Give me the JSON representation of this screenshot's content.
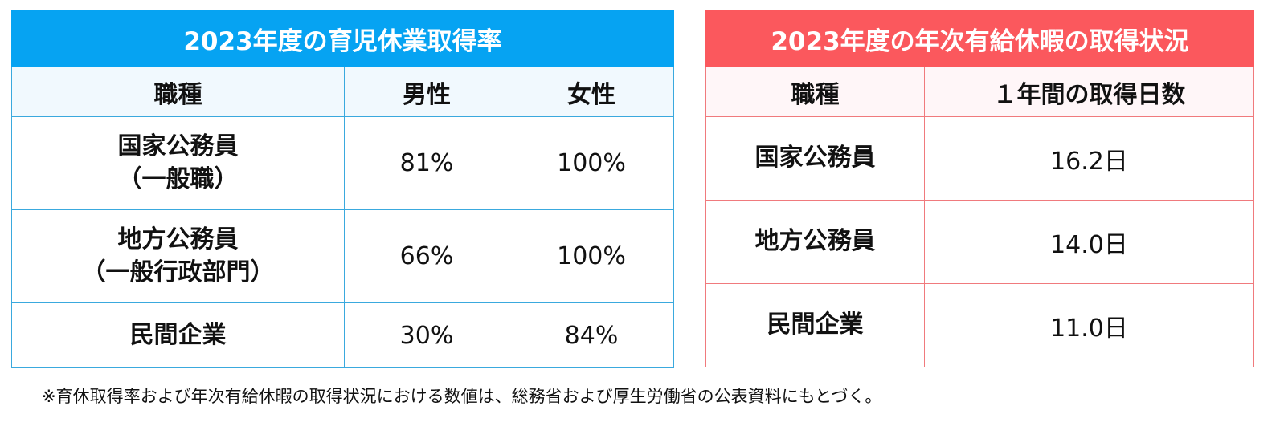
{
  "left_table": {
    "title": "2023年度の育児休業取得率",
    "headers": [
      "職種",
      "男性",
      "女性"
    ],
    "rows": [
      {
        "line1": "国家公務員",
        "line2": "（一般職）",
        "male": "81%",
        "female": "100%"
      },
      {
        "line1": "地方公務員",
        "line2": "（一般行政部門）",
        "male": "66%",
        "female": "100%"
      },
      {
        "line1": "民間企業",
        "line2": "",
        "male": "30%",
        "female": "84%"
      }
    ],
    "colors": {
      "header_bg": "#06a3f2",
      "border": "#3aa9de"
    }
  },
  "right_table": {
    "title": "2023年度の年次有給休暇の取得状況",
    "headers": [
      "職種",
      "１年間の取得日数"
    ],
    "rows": [
      {
        "job": "国家公務員",
        "days": "16.2日"
      },
      {
        "job": "地方公務員",
        "days": "14.0日"
      },
      {
        "job": "民間企業",
        "days": "11.0日"
      }
    ],
    "colors": {
      "header_bg": "#fb585d",
      "border": "#f07a7d"
    }
  },
  "footnote": "※育休取得率および年次有給休暇の取得状況における数値は、総務省および厚生労働省の公表資料にもとづく。"
}
